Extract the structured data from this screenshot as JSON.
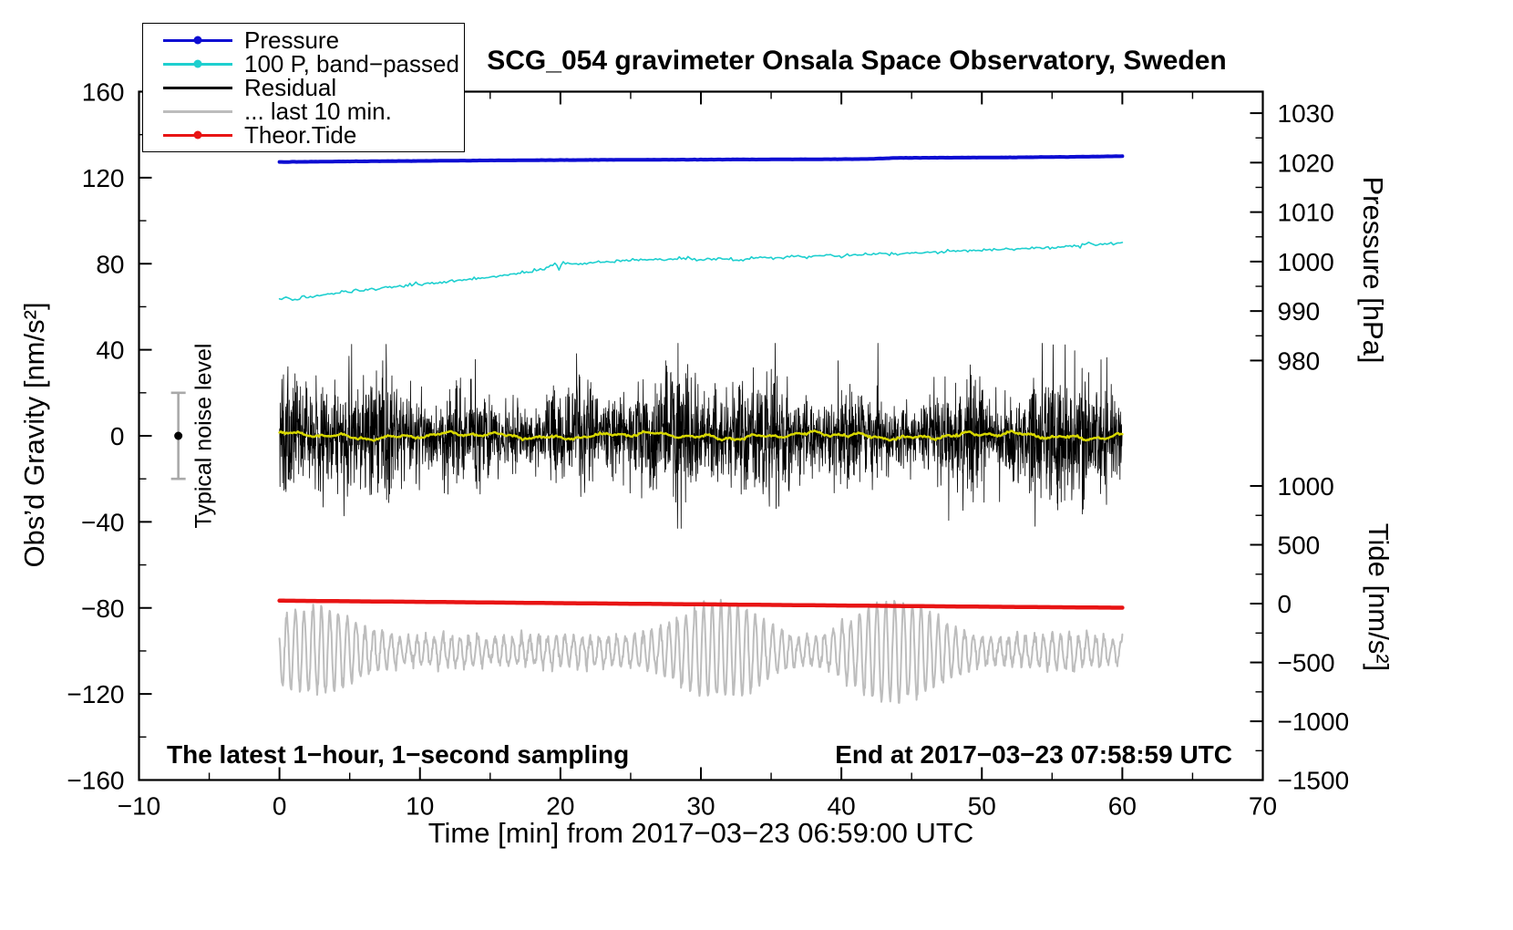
{
  "page": {
    "background": "#ffffff"
  },
  "chart_data": {
    "type": "line",
    "title": "SCG_054 gravimeter Onsala Space Observatory, Sweden",
    "xlabel": "Time [min] from 2017−03−23 06:59:00 UTC",
    "ylabel_left": "Obs’d Gravity [nm/s²]",
    "ylabel_pressure": "Pressure [hPa]",
    "ylabel_tide": "Tide [nm/s²]",
    "annotation_left": "The latest 1−hour, 1−second sampling",
    "annotation_right": "End at 2017−03−23 07:58:59 UTC",
    "noise_label": "Typical noise level",
    "xlim": [
      -10,
      70
    ],
    "ylim_left": [
      -160,
      160
    ],
    "x_ticks": [
      -10,
      0,
      10,
      20,
      30,
      40,
      50,
      60,
      70
    ],
    "x_minor_step": 5,
    "y_ticks_left": [
      -160,
      -120,
      -80,
      -40,
      0,
      40,
      80,
      120,
      160
    ],
    "y_minor_step_left": 20,
    "pressure_axis": {
      "ref": 1020,
      "g_at_ref": 127,
      "g_per_unit": 2.3,
      "ticks": [
        1030,
        1020,
        1010,
        1000,
        990,
        980
      ],
      "minor": [
        1025,
        1015,
        1005,
        995,
        985
      ]
    },
    "tide_axis": {
      "g_at_zero": -78,
      "g_per_unit": 0.0547,
      "ticks": [
        1000,
        500,
        0,
        -500,
        -1000,
        -1500
      ],
      "minor": [
        750,
        250,
        -250,
        -750,
        -1250
      ]
    },
    "noise_bar": {
      "x": -7.2,
      "center": 0,
      "half_range": 20,
      "color": "#a9a9a9",
      "dot_color": "#000000"
    },
    "seed": 20170323,
    "draw_order": [
      "last10",
      "residual",
      "residual_mean",
      "band_passed",
      "pressure",
      "theor_tide"
    ],
    "series": [
      {
        "id": "pressure",
        "label": "Pressure",
        "color": "#0d0dd2",
        "axis": "pressure",
        "kind": "line",
        "width": 4,
        "marker": true,
        "jitter": 0.012,
        "points": [
          [
            0,
            1020.13
          ],
          [
            5,
            1020.25
          ],
          [
            10,
            1020.35
          ],
          [
            15,
            1020.44
          ],
          [
            20,
            1020.52
          ],
          [
            25,
            1020.57
          ],
          [
            30,
            1020.61
          ],
          [
            35,
            1020.65
          ],
          [
            40,
            1020.7
          ],
          [
            42,
            1020.74
          ],
          [
            44,
            1020.96
          ],
          [
            48,
            1021.0
          ],
          [
            52,
            1021.06
          ],
          [
            56,
            1021.15
          ],
          [
            60,
            1021.3
          ]
        ]
      },
      {
        "id": "band_passed",
        "label": "100 P, band−passed",
        "color": "#1ecfcf",
        "axis": "gravity",
        "kind": "line",
        "width": 1.6,
        "marker": true,
        "jitter": 0.35,
        "points": [
          [
            0,
            63.5
          ],
          [
            0.6,
            64.3
          ],
          [
            1.1,
            62.9
          ],
          [
            1.6,
            64.6
          ],
          [
            2.2,
            64.1
          ],
          [
            3,
            65.4
          ],
          [
            4,
            66.3
          ],
          [
            5,
            67.0
          ],
          [
            6,
            67.8
          ],
          [
            7,
            68.5
          ],
          [
            8,
            69.2
          ],
          [
            9,
            69.9
          ],
          [
            10,
            70.4
          ],
          [
            11,
            71.0
          ],
          [
            12,
            71.6
          ],
          [
            13,
            72.3
          ],
          [
            14,
            73.0
          ],
          [
            15,
            73.7
          ],
          [
            16,
            74.5
          ],
          [
            17,
            75.4
          ],
          [
            18,
            76.6
          ],
          [
            19,
            78.1
          ],
          [
            19.6,
            79.9
          ],
          [
            19.9,
            77.4
          ],
          [
            20.2,
            80.6
          ],
          [
            21,
            79.9
          ],
          [
            22,
            80.4
          ],
          [
            23,
            80.9
          ],
          [
            24,
            81.3
          ],
          [
            25,
            81.6
          ],
          [
            26,
            81.8
          ],
          [
            28,
            82.0
          ],
          [
            30,
            82.1
          ],
          [
            32,
            82.3
          ],
          [
            33,
            81.4
          ],
          [
            33.6,
            82.9
          ],
          [
            35,
            82.7
          ],
          [
            36,
            83.0
          ],
          [
            38,
            83.4
          ],
          [
            40,
            83.8
          ],
          [
            41,
            84.1
          ],
          [
            42,
            84.3
          ],
          [
            43,
            84.9
          ],
          [
            44,
            84.6
          ],
          [
            45,
            85.0
          ],
          [
            46,
            85.2
          ],
          [
            47,
            85.5
          ],
          [
            48,
            85.8
          ],
          [
            49,
            86.1
          ],
          [
            50,
            86.3
          ],
          [
            51,
            86.6
          ],
          [
            52,
            86.8
          ],
          [
            53,
            87.1
          ],
          [
            54,
            87.3
          ],
          [
            55,
            87.6
          ],
          [
            56,
            88.0
          ],
          [
            57,
            88.4
          ],
          [
            57.6,
            89.9
          ],
          [
            58.1,
            88.9
          ],
          [
            58.6,
            89.3
          ],
          [
            59.2,
            89.6
          ],
          [
            60,
            89.9
          ]
        ]
      },
      {
        "id": "residual",
        "label": "Residual",
        "color": "#000000",
        "axis": "gravity",
        "kind": "noise",
        "width": 0.8,
        "marker": false,
        "center": 0,
        "std": 11,
        "clip": 43,
        "points_n": 3200,
        "spike_prob": 0.005,
        "spike_gain": 2.1
      },
      {
        "id": "last10",
        "label": "... last 10 min.",
        "color": "#bdbdbd",
        "axis": "gravity",
        "kind": "wave",
        "width": 2,
        "marker": false,
        "center": -100,
        "base_amp": 6,
        "burst_amp": 21,
        "period_min": 0.62,
        "points_n": 1700,
        "jitter": 1.2
      },
      {
        "id": "theor_tide",
        "label": "Theor.Tide",
        "color": "#e81414",
        "axis": "tide",
        "kind": "line",
        "width": 4.5,
        "marker": true,
        "jitter": 0,
        "points": [
          [
            0,
            25
          ],
          [
            10,
            15
          ],
          [
            20,
            4
          ],
          [
            30,
            -6
          ],
          [
            40,
            -16
          ],
          [
            50,
            -26
          ],
          [
            60,
            -35
          ]
        ]
      },
      {
        "id": "residual_mean",
        "label": "",
        "color": "#d6d600",
        "axis": "gravity",
        "kind": "smooth",
        "width": 2.5,
        "marker": false,
        "legend": false,
        "center": 0,
        "amps": [
          1.0,
          0.7,
          0.45
        ],
        "freqs": [
          0.5,
          1.7,
          4.1
        ],
        "phases": [
          1.3,
          0.3,
          2.0
        ],
        "jitter": 0.25,
        "points_n": 600
      }
    ]
  }
}
